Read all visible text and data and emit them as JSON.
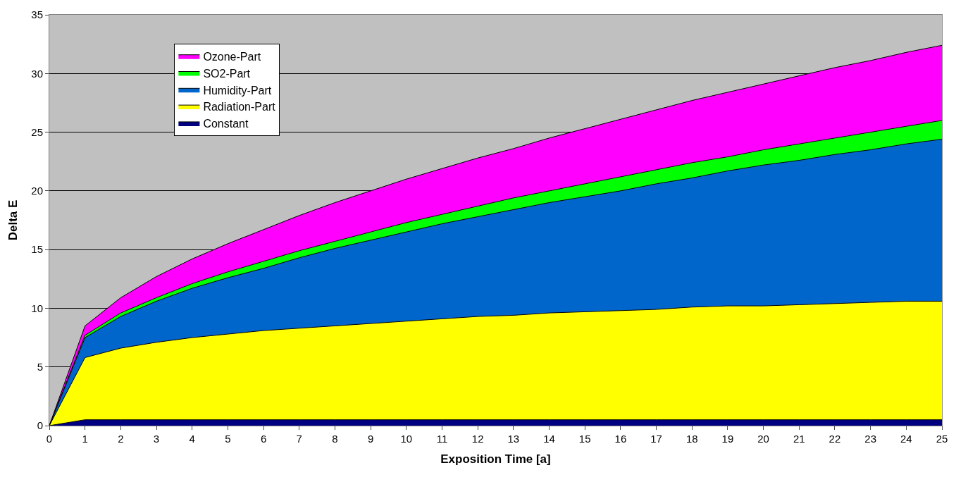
{
  "chart_data": {
    "type": "area",
    "stacked": true,
    "xlabel": "Exposition Time [a]",
    "ylabel": "Delta E",
    "x": [
      0,
      1,
      2,
      3,
      4,
      5,
      6,
      7,
      8,
      9,
      10,
      11,
      12,
      13,
      14,
      15,
      16,
      17,
      18,
      19,
      20,
      21,
      22,
      23,
      24,
      25
    ],
    "series": [
      {
        "name": "Constant",
        "color": "#000080",
        "values": [
          0,
          0.5,
          0.5,
          0.5,
          0.5,
          0.5,
          0.5,
          0.5,
          0.5,
          0.5,
          0.5,
          0.5,
          0.5,
          0.5,
          0.5,
          0.5,
          0.5,
          0.5,
          0.5,
          0.5,
          0.5,
          0.5,
          0.5,
          0.5,
          0.5,
          0.5
        ]
      },
      {
        "name": "Radiation-Part",
        "color": "#ffff00",
        "values": [
          0,
          5.3,
          6.1,
          6.6,
          7.0,
          7.3,
          7.6,
          7.8,
          8.0,
          8.2,
          8.4,
          8.6,
          8.8,
          8.9,
          9.1,
          9.2,
          9.3,
          9.4,
          9.6,
          9.7,
          9.7,
          9.8,
          9.9,
          10.0,
          10.1,
          10.1
        ]
      },
      {
        "name": "Humidity-Part",
        "color": "#0066cc",
        "values": [
          0,
          1.7,
          2.7,
          3.5,
          4.2,
          4.8,
          5.3,
          6.0,
          6.6,
          7.1,
          7.6,
          8.1,
          8.5,
          9.0,
          9.4,
          9.8,
          10.2,
          10.7,
          11.0,
          11.5,
          12.0,
          12.3,
          12.7,
          13.0,
          13.4,
          13.8
        ]
      },
      {
        "name": "SO2-Part",
        "color": "#00ff00",
        "values": [
          0,
          0.2,
          0.3,
          0.3,
          0.4,
          0.5,
          0.6,
          0.6,
          0.6,
          0.7,
          0.8,
          0.8,
          0.9,
          1.0,
          1.0,
          1.1,
          1.2,
          1.2,
          1.3,
          1.2,
          1.3,
          1.4,
          1.4,
          1.5,
          1.5,
          1.6
        ]
      },
      {
        "name": "Ozone-Part",
        "color": "#ff00ff",
        "values": [
          0,
          0.8,
          1.3,
          1.8,
          2.1,
          2.4,
          2.7,
          3.0,
          3.3,
          3.5,
          3.7,
          3.9,
          4.1,
          4.2,
          4.5,
          4.7,
          4.9,
          5.1,
          5.3,
          5.5,
          5.6,
          5.8,
          6.0,
          6.1,
          6.3,
          6.4
        ]
      }
    ],
    "xlim": [
      0,
      25
    ],
    "xticks": [
      0,
      1,
      2,
      3,
      4,
      5,
      6,
      7,
      8,
      9,
      10,
      11,
      12,
      13,
      14,
      15,
      16,
      17,
      18,
      19,
      20,
      21,
      22,
      23,
      24,
      25
    ],
    "ylim": [
      0,
      35
    ],
    "yticks": [
      0,
      5,
      10,
      15,
      20,
      25,
      30,
      35
    ],
    "grid": "y",
    "legend": "top left"
  }
}
